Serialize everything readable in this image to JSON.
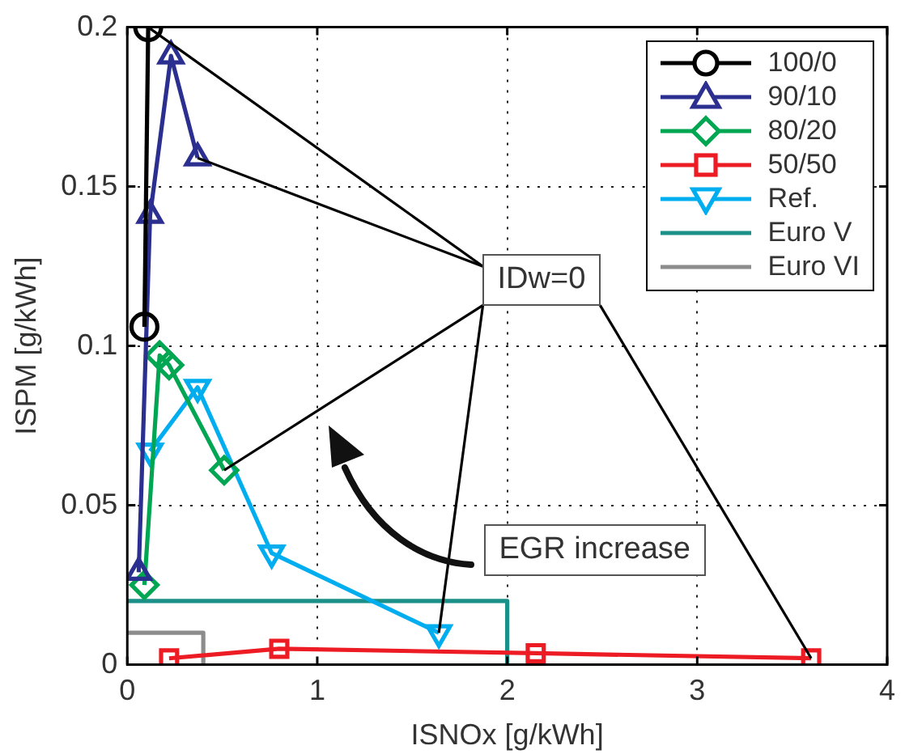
{
  "chart_data": {
    "type": "line",
    "xlabel": "ISNOx [g/kWh]",
    "ylabel": "ISPM [g/kWh]",
    "xlim": [
      0,
      4
    ],
    "xticks": [
      0,
      1,
      2,
      3,
      4
    ],
    "ylim": [
      0,
      0.2
    ],
    "yticks": [
      0,
      0.05,
      0.1,
      0.15,
      0.2
    ],
    "grid": true,
    "legend": "top right",
    "line_style": "solid",
    "series": [
      {
        "name": "100/0",
        "color": "#000000",
        "marker": "circle",
        "x": [
          0.09,
          0.11
        ],
        "values": [
          0.106,
          0.2
        ]
      },
      {
        "name": "90/10",
        "color": "#2b2f8f",
        "marker": "triangle",
        "x": [
          0.06,
          0.12,
          0.23,
          0.37
        ],
        "values": [
          0.029,
          0.141,
          0.191,
          0.159
        ]
      },
      {
        "name": "80/20",
        "color": "#00a651",
        "marker": "diamond",
        "x": [
          0.09,
          0.17,
          0.22,
          0.51
        ],
        "values": [
          0.025,
          0.097,
          0.094,
          0.061
        ]
      },
      {
        "name": "50/50",
        "color": "#ed1c24",
        "marker": "square",
        "x": [
          0.22,
          0.8,
          2.15,
          3.6
        ],
        "values": [
          0.002,
          0.005,
          0.0036,
          0.002
        ]
      },
      {
        "name": "Ref.",
        "color": "#00aeef",
        "marker": "triangle-down",
        "x": [
          0.12,
          0.37,
          0.76,
          1.64
        ],
        "values": [
          0.067,
          0.087,
          0.035,
          0.01
        ]
      },
      {
        "name": "Euro V",
        "color": "#1a9088",
        "marker": "none",
        "x": [
          0,
          2,
          2
        ],
        "values": [
          0.02,
          0.02,
          0
        ]
      },
      {
        "name": "Euro VI",
        "color": "#8c8c8c",
        "marker": "none",
        "x": [
          0,
          0.4,
          0.4
        ],
        "values": [
          0.01,
          0.01,
          0
        ]
      }
    ],
    "annotations": [
      "IDw=0",
      "EGR increase"
    ]
  }
}
